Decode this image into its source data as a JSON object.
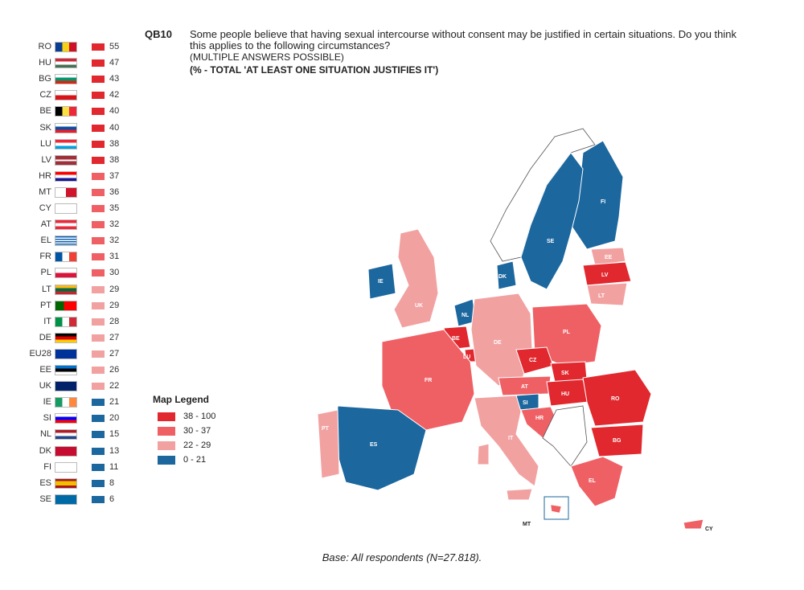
{
  "question": {
    "id": "QB10",
    "text": "Some people believe that having sexual intercourse without consent may be justified in certain situations. Do you think this applies to the following circumstances?",
    "note": "(MULTIPLE ANSWERS POSSIBLE)",
    "subtitle": "(% - TOTAL 'AT LEAST ONE SITUATION JUSTIFIES IT')"
  },
  "legend": {
    "title": "Map Legend",
    "items": [
      {
        "label": "38 - 100",
        "color": "#e0282e"
      },
      {
        "label": "30 - 37",
        "color": "#ef6065"
      },
      {
        "label": "22 - 29",
        "color": "#f2a1a1"
      },
      {
        "label": "0 - 21",
        "color": "#1b679e"
      }
    ]
  },
  "countries": [
    {
      "code": "RO",
      "value": 55,
      "color": "#e0282e"
    },
    {
      "code": "HU",
      "value": 47,
      "color": "#e0282e"
    },
    {
      "code": "BG",
      "value": 43,
      "color": "#e0282e"
    },
    {
      "code": "CZ",
      "value": 42,
      "color": "#e0282e"
    },
    {
      "code": "BE",
      "value": 40,
      "color": "#e0282e"
    },
    {
      "code": "SK",
      "value": 40,
      "color": "#e0282e"
    },
    {
      "code": "LU",
      "value": 38,
      "color": "#e0282e"
    },
    {
      "code": "LV",
      "value": 38,
      "color": "#e0282e"
    },
    {
      "code": "HR",
      "value": 37,
      "color": "#ef6065"
    },
    {
      "code": "MT",
      "value": 36,
      "color": "#ef6065"
    },
    {
      "code": "CY",
      "value": 35,
      "color": "#ef6065"
    },
    {
      "code": "AT",
      "value": 32,
      "color": "#ef6065"
    },
    {
      "code": "EL",
      "value": 32,
      "color": "#ef6065"
    },
    {
      "code": "FR",
      "value": 31,
      "color": "#ef6065"
    },
    {
      "code": "PL",
      "value": 30,
      "color": "#ef6065"
    },
    {
      "code": "LT",
      "value": 29,
      "color": "#f2a1a1"
    },
    {
      "code": "PT",
      "value": 29,
      "color": "#f2a1a1"
    },
    {
      "code": "IT",
      "value": 28,
      "color": "#f2a1a1"
    },
    {
      "code": "DE",
      "value": 27,
      "color": "#f2a1a1"
    },
    {
      "code": "EU28",
      "value": 27,
      "color": "#f2a1a1"
    },
    {
      "code": "EE",
      "value": 26,
      "color": "#f2a1a1"
    },
    {
      "code": "UK",
      "value": 22,
      "color": "#f2a1a1"
    },
    {
      "code": "IE",
      "value": 21,
      "color": "#1b679e"
    },
    {
      "code": "SI",
      "value": 20,
      "color": "#1b679e"
    },
    {
      "code": "NL",
      "value": 15,
      "color": "#1b679e"
    },
    {
      "code": "DK",
      "value": 13,
      "color": "#1b679e"
    },
    {
      "code": "FI",
      "value": 11,
      "color": "#1b679e"
    },
    {
      "code": "ES",
      "value": 8,
      "color": "#1b679e"
    },
    {
      "code": "SE",
      "value": 6,
      "color": "#1b679e"
    }
  ],
  "map_labels": [
    "FI",
    "SE",
    "EE",
    "LV",
    "LT",
    "DK",
    "IE",
    "UK",
    "NL",
    "BE",
    "LU",
    "DE",
    "PL",
    "CZ",
    "SK",
    "AT",
    "HU",
    "SI",
    "HR",
    "RO",
    "BG",
    "FR",
    "PT",
    "ES",
    "IT",
    "EL",
    "MT",
    "CY"
  ],
  "base": "Base: All respondents (N=27.818)."
}
